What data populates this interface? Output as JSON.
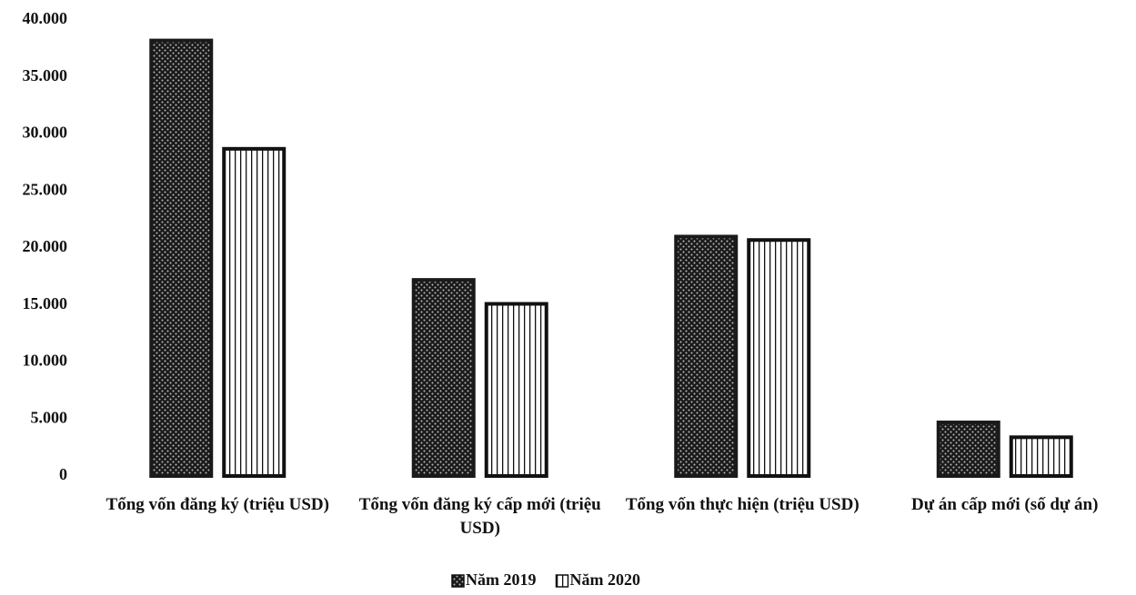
{
  "chart_data": {
    "type": "bar",
    "categories": [
      "Tổng vốn đăng ký (triệu USD)",
      "Tổng vốn đăng ký cấp mới (triệu USD)",
      "Tổng vốn thực hiện (triệu USD)",
      "Dự  án cấp mới (số dự án)"
    ],
    "series": [
      {
        "name": "Năm 2019",
        "color": "#1a1a1a",
        "values": [
          38200,
          17200,
          21000,
          4700
        ]
      },
      {
        "name": "Năm 2020",
        "color": "#ffffff",
        "values": [
          28700,
          15100,
          20700,
          3400
        ]
      }
    ],
    "ylim": [
      0,
      40000
    ],
    "yticks": [
      0,
      {
        "value": 5000,
        "label": "5.000"
      },
      {
        "value": 10000,
        "label": "10.000"
      },
      {
        "value": 15000,
        "label": "15.000"
      },
      {
        "value": 20000,
        "label": "20.000"
      },
      {
        "value": 25000,
        "label": "25.000"
      },
      {
        "value": 30000,
        "label": "30.000"
      },
      {
        "value": 35000,
        "label": "35.000"
      },
      {
        "value": 40000,
        "label": "40.000"
      }
    ],
    "grid": false,
    "legend": "bottom"
  }
}
